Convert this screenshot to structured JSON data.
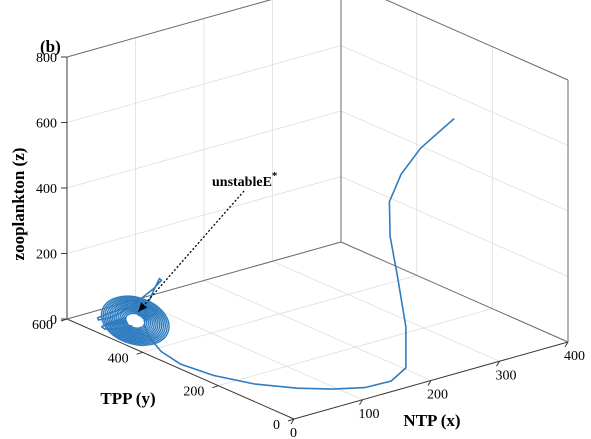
{
  "chart_data": {
    "type": "line",
    "projection": "3d",
    "panel_label": "(b)",
    "xlabel": "NTP (x)",
    "ylabel": "TPP (y)",
    "zlabel": "zooplankton (z)",
    "xlim": [
      0,
      400
    ],
    "ylim": [
      0,
      600
    ],
    "zlim": [
      0,
      800
    ],
    "xticks": [
      "0",
      "100",
      "200",
      "300",
      "400"
    ],
    "yticks": [
      "0",
      "200",
      "400",
      "600"
    ],
    "zticks": [
      "0",
      "200",
      "400",
      "600",
      "800"
    ],
    "grid": true,
    "line_color": "#2f7cc0",
    "annotation": {
      "text": "unstableE",
      "superscript": "*",
      "point": {
        "x": 40,
        "y": 500,
        "z": 25
      }
    },
    "series": [
      {
        "x": [
          300,
          250,
          220,
          200,
          190,
          184,
          180,
          170,
          150,
          120,
          90,
          60,
          30,
          10,
          0,
          5,
          20,
          40,
          60,
          75,
          85,
          88,
          80,
          60,
          30,
          5,
          -10,
          -15,
          -5,
          15,
          40,
          62,
          72,
          68,
          50,
          30,
          10,
          0,
          2,
          15,
          35,
          52,
          58,
          52,
          38,
          22,
          12,
          8,
          15,
          28,
          45,
          52,
          48,
          35,
          22,
          16,
          20,
          32,
          45,
          48,
          42,
          32,
          26,
          28,
          38,
          46,
          45,
          38,
          33,
          35,
          42,
          44,
          40,
          38,
          40
        ],
        "y": [
          120,
          118,
          115,
          110,
          90,
          60,
          30,
          12,
          15,
          30,
          60,
          100,
          160,
          230,
          300,
          360,
          420,
          470,
          500,
          520,
          525,
          515,
          495,
          480,
          470,
          465,
          470,
          490,
          510,
          520,
          525,
          520,
          505,
          490,
          480,
          478,
          485,
          500,
          512,
          518,
          515,
          505,
          495,
          488,
          486,
          490,
          498,
          508,
          514,
          514,
          508,
          500,
          493,
          490,
          494,
          500,
          506,
          509,
          506,
          500,
          496,
          495,
          498,
          502,
          504,
          503,
          500,
          498,
          498,
          500,
          502,
          502,
          500,
          499,
          500
        ],
        "z": [
          680,
          620,
          560,
          490,
          400,
          300,
          160,
          50,
          20,
          10,
          8,
          8,
          8,
          10,
          15,
          20,
          25,
          30,
          38,
          48,
          75,
          115,
          125,
          118,
          100,
          85,
          75,
          62,
          52,
          48,
          46,
          42,
          38,
          34,
          30,
          26,
          22,
          20,
          20,
          21,
          24,
          27,
          30,
          32,
          32,
          30,
          28,
          24,
          21,
          20,
          21,
          24,
          28,
          30,
          30,
          28,
          25,
          22,
          21,
          22,
          25,
          27,
          29,
          28,
          26,
          24,
          23,
          23,
          24,
          26,
          27,
          26,
          25,
          24,
          25
        ]
      }
    ]
  }
}
